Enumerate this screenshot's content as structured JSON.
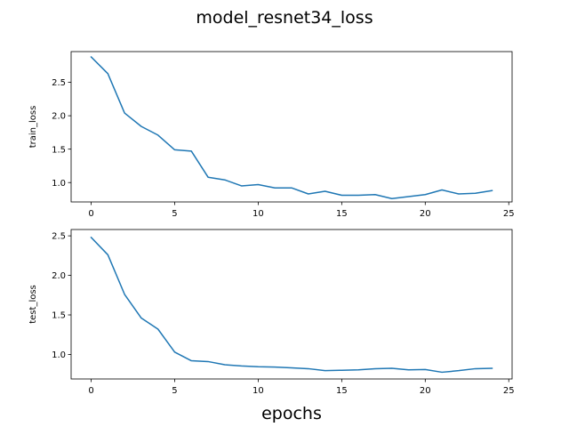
{
  "figure": {
    "title": "model_resnet34_loss",
    "xlabel": "epochs",
    "line_color": "#1f77b4"
  },
  "chart_data": [
    {
      "type": "line",
      "title": "",
      "xlabel": "",
      "ylabel": "train_loss",
      "xlim": [
        -1.2,
        25.2
      ],
      "ylim": [
        0.71,
        2.96
      ],
      "xticks": [
        0,
        5,
        10,
        15,
        20,
        25
      ],
      "yticks": [
        1.0,
        1.5,
        2.0,
        2.5
      ],
      "ytick_labels": [
        "1.0",
        "1.5",
        "2.0",
        "2.5"
      ],
      "grid": false,
      "x": [
        0,
        1,
        2,
        3,
        4,
        5,
        6,
        7,
        8,
        9,
        10,
        11,
        12,
        13,
        14,
        15,
        16,
        17,
        18,
        19,
        20,
        21,
        22,
        23,
        24
      ],
      "series": [
        {
          "name": "",
          "values": [
            2.88,
            2.63,
            2.04,
            1.84,
            1.71,
            1.49,
            1.47,
            1.08,
            1.04,
            0.95,
            0.97,
            0.92,
            0.92,
            0.83,
            0.87,
            0.81,
            0.81,
            0.82,
            0.76,
            0.79,
            0.82,
            0.89,
            0.83,
            0.84,
            0.88
          ]
        }
      ]
    },
    {
      "type": "line",
      "title": "",
      "xlabel": "epochs",
      "ylabel": "test_loss",
      "xlim": [
        -1.2,
        25.2
      ],
      "ylim": [
        0.69,
        2.58
      ],
      "xticks": [
        0,
        5,
        10,
        15,
        20,
        25
      ],
      "yticks": [
        1.0,
        1.5,
        2.0,
        2.5
      ],
      "ytick_labels": [
        "1.0",
        "1.5",
        "2.0",
        "2.5"
      ],
      "grid": false,
      "x": [
        0,
        1,
        2,
        3,
        4,
        5,
        6,
        7,
        8,
        9,
        10,
        11,
        12,
        13,
        14,
        15,
        16,
        17,
        18,
        19,
        20,
        21,
        22,
        23,
        24
      ],
      "series": [
        {
          "name": "",
          "values": [
            2.48,
            2.26,
            1.76,
            1.46,
            1.32,
            1.03,
            0.92,
            0.91,
            0.87,
            0.855,
            0.845,
            0.84,
            0.83,
            0.82,
            0.795,
            0.8,
            0.805,
            0.82,
            0.825,
            0.805,
            0.81,
            0.775,
            0.795,
            0.82,
            0.825
          ]
        }
      ]
    }
  ]
}
